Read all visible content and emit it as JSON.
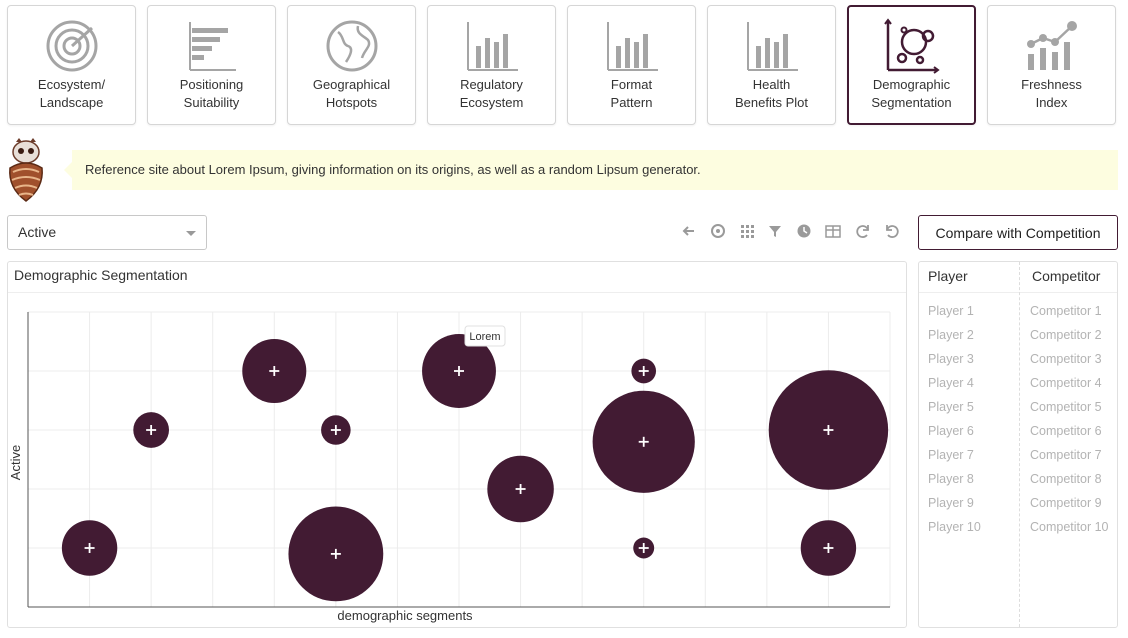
{
  "tabs": [
    {
      "label": "Ecosystem/\nLandscape",
      "icon": "radar-icon",
      "active": false
    },
    {
      "label": "Positioning\nSuitability",
      "icon": "horizontal-bar-chart-icon",
      "active": false
    },
    {
      "label": "Geographical\nHotspots",
      "icon": "globe-icon",
      "active": false
    },
    {
      "label": "Regulatory\nEcosystem",
      "icon": "bar-chart-icon",
      "active": false
    },
    {
      "label": "Format\nPattern",
      "icon": "bar-chart-icon",
      "active": false
    },
    {
      "label": "Health\nBenefits Plot",
      "icon": "bar-chart-icon",
      "active": false
    },
    {
      "label": "Demographic\nSegmentation",
      "icon": "bubble-chart-icon",
      "active": true
    },
    {
      "label": "Freshness\nIndex",
      "icon": "line-bar-chart-icon",
      "active": false
    }
  ],
  "notice": {
    "text": "Reference site about Lorem Ipsum, giving information on its origins, as well as a random Lipsum generator."
  },
  "filter": {
    "selected": "Active"
  },
  "toolbar": {
    "icons": [
      "arrow-left-icon",
      "target-icon",
      "grid-icon",
      "filter-icon",
      "clock-icon",
      "table-icon",
      "redo-icon",
      "undo-icon"
    ]
  },
  "compare": {
    "label": "Compare with Competition"
  },
  "chart": {
    "title": "Demographic Segmentation",
    "tooltip": "Lorem"
  },
  "chart_data": {
    "type": "scatter",
    "xlabel": "demographic segments",
    "ylabel": "Active",
    "xlim": [
      0,
      14
    ],
    "ylim": [
      0,
      5
    ],
    "grid": true,
    "points": [
      {
        "x": 1,
        "y": 1,
        "size": 0.45
      },
      {
        "x": 2,
        "y": 3,
        "size": 0.29
      },
      {
        "x": 4,
        "y": 4,
        "size": 0.52
      },
      {
        "x": 5,
        "y": 3,
        "size": 0.24
      },
      {
        "x": 5,
        "y": 0.9,
        "size": 0.77
      },
      {
        "x": 7,
        "y": 4,
        "size": 0.6
      },
      {
        "x": 8,
        "y": 2,
        "size": 0.54
      },
      {
        "x": 10,
        "y": 4,
        "size": 0.2
      },
      {
        "x": 10,
        "y": 2.8,
        "size": 0.83
      },
      {
        "x": 10,
        "y": 1,
        "size": 0.17
      },
      {
        "x": 13,
        "y": 3,
        "size": 0.97
      },
      {
        "x": 13,
        "y": 1,
        "size": 0.45
      }
    ],
    "color": "#421b33"
  },
  "table": {
    "headers": [
      "Player",
      "Competitor"
    ],
    "players": [
      "Player 1",
      "Player 2",
      "Player 3",
      "Player 4",
      "Player 5",
      "Player 6",
      "Player 7",
      "Player 8",
      "Player 9",
      "Player 10"
    ],
    "competitors": [
      "Competitor 1",
      "Competitor 2",
      "Competitor 3",
      "Competitor 4",
      "Competitor 5",
      "Competitor 6",
      "Competitor 7",
      "Competitor 8",
      "Competitor 9",
      "Competitor 10"
    ]
  }
}
